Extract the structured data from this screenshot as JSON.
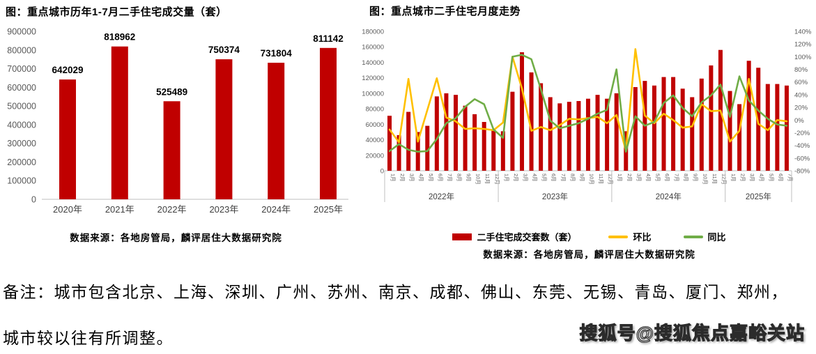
{
  "chart_data": [
    {
      "type": "bar",
      "title": "图：重点城市历年1-7月二手住宅成交量（套）",
      "categories": [
        "2020年",
        "2021年",
        "2022年",
        "2023年",
        "2024年",
        "2025年"
      ],
      "values": [
        642029,
        818962,
        525489,
        750374,
        731804,
        811142
      ],
      "ylim": [
        0,
        900000
      ],
      "ytick_step": 100000,
      "grid": false,
      "bar_color": "#C00000",
      "source": "数据来源：各地房管局，麟评居住大数据研究院"
    },
    {
      "type": "bar+line",
      "title": "图：重点城市二手住宅月度走势",
      "year_groups": [
        {
          "label": "2022年",
          "months": [
            "1月",
            "2月",
            "3月",
            "4月",
            "5月",
            "6月",
            "7月",
            "8月",
            "9月",
            "10月",
            "11月",
            "12月"
          ]
        },
        {
          "label": "2023年",
          "months": [
            "1月",
            "2月",
            "3月",
            "4月",
            "5月",
            "6月",
            "7月",
            "8月",
            "9月",
            "10月",
            "11月",
            "12月"
          ]
        },
        {
          "label": "2024年",
          "months": [
            "1月",
            "2月",
            "3月",
            "4月",
            "5月",
            "6月",
            "7月",
            "8月",
            "9月",
            "10月",
            "11月",
            "12月"
          ]
        },
        {
          "label": "2025年",
          "months": [
            "1月",
            "2月",
            "3月",
            "4月",
            "5月",
            "6月",
            "7月"
          ]
        }
      ],
      "left_axis": {
        "min": 0,
        "max": 180000,
        "step": 20000
      },
      "right_axis": {
        "min": -80,
        "max": 140,
        "step": 20,
        "suffix": "%"
      },
      "legend_position": "bottom",
      "series": [
        {
          "name": "二手住宅成交套数（套）",
          "type": "bar",
          "axis": "left",
          "color": "#C00000",
          "values": [
            71000,
            46000,
            76000,
            50000,
            58000,
            96000,
            100000,
            98000,
            84000,
            73000,
            63000,
            53000,
            51000,
            102000,
            153000,
            127000,
            113000,
            95000,
            87000,
            89000,
            90000,
            93000,
            98000,
            93000,
            100000,
            51000,
            108000,
            116000,
            110000,
            121000,
            121000,
            106000,
            95000,
            119000,
            136000,
            156000,
            103000,
            86000,
            142000,
            133000,
            112000,
            112000,
            110000
          ]
        },
        {
          "name": "环比",
          "type": "line",
          "axis": "right",
          "color": "#FFC000",
          "values": [
            -15,
            -35,
            65,
            -34,
            16,
            66,
            4,
            -2,
            -14,
            -13,
            -14,
            -16,
            -4,
            100,
            50,
            -17,
            -11,
            -16,
            -8,
            2,
            1,
            3,
            5,
            -5,
            8,
            -49,
            112,
            7,
            -5,
            10,
            0,
            -12,
            -10,
            25,
            14,
            15,
            -34,
            -17,
            65,
            -6,
            -16,
            0,
            -2
          ]
        },
        {
          "name": "同比",
          "type": "line",
          "axis": "right",
          "color": "#70AD47",
          "values": [
            -49,
            -38,
            -47,
            -50,
            -49,
            -30,
            -5,
            3,
            21,
            33,
            25,
            -15,
            -28,
            100,
            103,
            96,
            49,
            -1,
            -13,
            -9,
            -5,
            2,
            10,
            16,
            80,
            -50,
            6,
            -9,
            -3,
            27,
            39,
            19,
            6,
            28,
            39,
            56,
            5,
            69,
            31,
            15,
            2,
            -7,
            -9
          ]
        }
      ],
      "source": "数据来源：各地房管局，麟评居住大数据研究院"
    }
  ],
  "note": {
    "line1": "备注：城市包含北京、上海、深圳、广州、苏州、南京、成都、佛山、东莞、无锡、青岛、厦门、郑州，",
    "line2": "城市较以往有所调整。"
  },
  "watermark": "搜狐号@搜狐焦点嘉峪关站",
  "colors": {
    "bar": "#C00000",
    "huanbi_line": "#FFC000",
    "tongbi_line": "#70AD47",
    "axis_text": "#595959",
    "divider": "#BFBFBF"
  }
}
